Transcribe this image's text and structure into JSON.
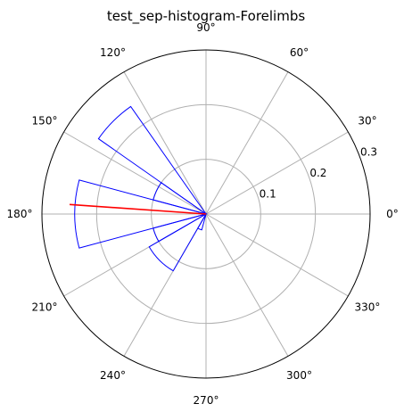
{
  "chart_data": {
    "type": "polar-histogram",
    "title": "test_sep-histogram-Forelimbs",
    "angle_ticks": [
      "0°",
      "30°",
      "60°",
      "90°",
      "120°",
      "150°",
      "180°",
      "210°",
      "240°",
      "270°",
      "300°",
      "330°"
    ],
    "radial_ticks": [
      "0.1",
      "0.2",
      "0.3"
    ],
    "radial_tick_values": [
      0.1,
      0.2,
      0.3
    ],
    "rmax": 0.3,
    "bars": [
      {
        "start_deg": 125,
        "end_deg": 145,
        "value": 0.24
      },
      {
        "start_deg": 145,
        "end_deg": 165,
        "value": 0.1
      },
      {
        "start_deg": 165,
        "end_deg": 195,
        "value": 0.24
      },
      {
        "start_deg": 195,
        "end_deg": 210,
        "value": 0.1
      },
      {
        "start_deg": 210,
        "end_deg": 240,
        "value": 0.12
      },
      {
        "start_deg": 240,
        "end_deg": 255,
        "value": 0.03
      }
    ],
    "mean_direction": {
      "angle_deg": 176,
      "length": 0.25
    },
    "colors": {
      "bars": "#0000ff",
      "mean": "#ff0000",
      "grid": "#b0b0b0",
      "frame": "#000000"
    },
    "grid": true
  }
}
